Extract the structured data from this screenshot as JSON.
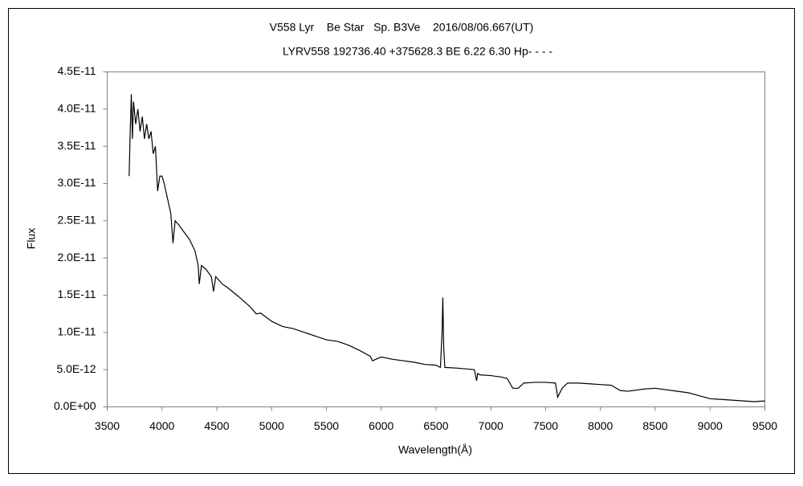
{
  "chart_data": {
    "type": "line",
    "title": "V558 Lyr    Be Star   Sp. B3Ve    2016/08/06.667(UT)",
    "subtitle": "LYRV558 192736.40 +375628.3 BE 6.22 6.30 Hp- - - -",
    "xlabel": "Wavelength(Å)",
    "ylabel": "Flux",
    "x": [
      3700,
      3710,
      3720,
      3730,
      3740,
      3760,
      3780,
      3800,
      3820,
      3840,
      3860,
      3880,
      3900,
      3920,
      3940,
      3960,
      3980,
      4000,
      4020,
      4050,
      4080,
      4100,
      4120,
      4150,
      4200,
      4250,
      4300,
      4330,
      4340,
      4360,
      4400,
      4450,
      4470,
      4490,
      4550,
      4600,
      4700,
      4800,
      4860,
      4900,
      5000,
      5100,
      5200,
      5300,
      5400,
      5500,
      5600,
      5700,
      5800,
      5900,
      5920,
      6000,
      6100,
      6200,
      6300,
      6400,
      6500,
      6540,
      6555,
      6562,
      6570,
      6580,
      6700,
      6850,
      6870,
      6880,
      6900,
      7000,
      7100,
      7150,
      7200,
      7250,
      7300,
      7400,
      7500,
      7590,
      7610,
      7650,
      7700,
      7800,
      7900,
      8000,
      8100,
      8180,
      8250,
      8400,
      8500,
      8650,
      8800,
      8900,
      9000,
      9200,
      9400,
      9500
    ],
    "series": [
      {
        "name": "Flux",
        "color": "#000000",
        "values": [
          3.1e-11,
          3.7e-11,
          4.2e-11,
          3.6e-11,
          4.1e-11,
          3.8e-11,
          4e-11,
          3.7e-11,
          3.9e-11,
          3.6e-11,
          3.8e-11,
          3.6e-11,
          3.7e-11,
          3.4e-11,
          3.5e-11,
          2.9e-11,
          3.1e-11,
          3.1e-11,
          3e-11,
          2.8e-11,
          2.6e-11,
          2.2e-11,
          2.5e-11,
          2.45e-11,
          2.35e-11,
          2.25e-11,
          2.1e-11,
          1.9e-11,
          1.65e-11,
          1.9e-11,
          1.85e-11,
          1.75e-11,
          1.55e-11,
          1.75e-11,
          1.65e-11,
          1.6e-11,
          1.48e-11,
          1.35e-11,
          1.25e-11,
          1.26e-11,
          1.15e-11,
          1.08e-11,
          1.05e-11,
          1e-11,
          9.5e-12,
          9e-12,
          8.8e-12,
          8.3e-12,
          7.6e-12,
          6.8e-12,
          6.2e-12,
          6.7e-12,
          6.4e-12,
          6.2e-12,
          6e-12,
          5.7e-12,
          5.6e-12,
          5.3e-12,
          1e-11,
          1.47e-11,
          8e-12,
          5.3e-12,
          5.2e-12,
          5e-12,
          3.5e-12,
          4.5e-12,
          4.3e-12,
          4.2e-12,
          4e-12,
          3.8e-12,
          2.5e-12,
          2.5e-12,
          3.2e-12,
          3.3e-12,
          3.3e-12,
          3.2e-12,
          1.3e-12,
          2.5e-12,
          3.2e-12,
          3.2e-12,
          3.1e-12,
          3e-12,
          2.9e-12,
          2.2e-12,
          2.1e-12,
          2.4e-12,
          2.5e-12,
          2.2e-12,
          1.9e-12,
          1.5e-12,
          1.1e-12,
          9e-13,
          7e-13,
          8e-13
        ]
      }
    ],
    "xlim": [
      3500,
      9500
    ],
    "xticks": [
      3500,
      4000,
      4500,
      5000,
      5500,
      6000,
      6500,
      7000,
      7500,
      8000,
      8500,
      9000,
      9500
    ],
    "ylim": [
      0,
      4.5e-11
    ],
    "yticks": [
      {
        "value": 0,
        "label": "0.0E+00"
      },
      {
        "value": 5e-12,
        "label": "5.0E-12"
      },
      {
        "value": 1e-11,
        "label": "1.0E-11"
      },
      {
        "value": 1.5e-11,
        "label": "1.5E-11"
      },
      {
        "value": 2e-11,
        "label": "2.0E-11"
      },
      {
        "value": 2.5e-11,
        "label": "2.5E-11"
      },
      {
        "value": 3e-11,
        "label": "3.0E-11"
      },
      {
        "value": 3.5e-11,
        "label": "3.5E-11"
      },
      {
        "value": 4e-11,
        "label": "4.0E-11"
      },
      {
        "value": 4.5e-11,
        "label": "4.5E-11"
      }
    ],
    "grid": false
  }
}
